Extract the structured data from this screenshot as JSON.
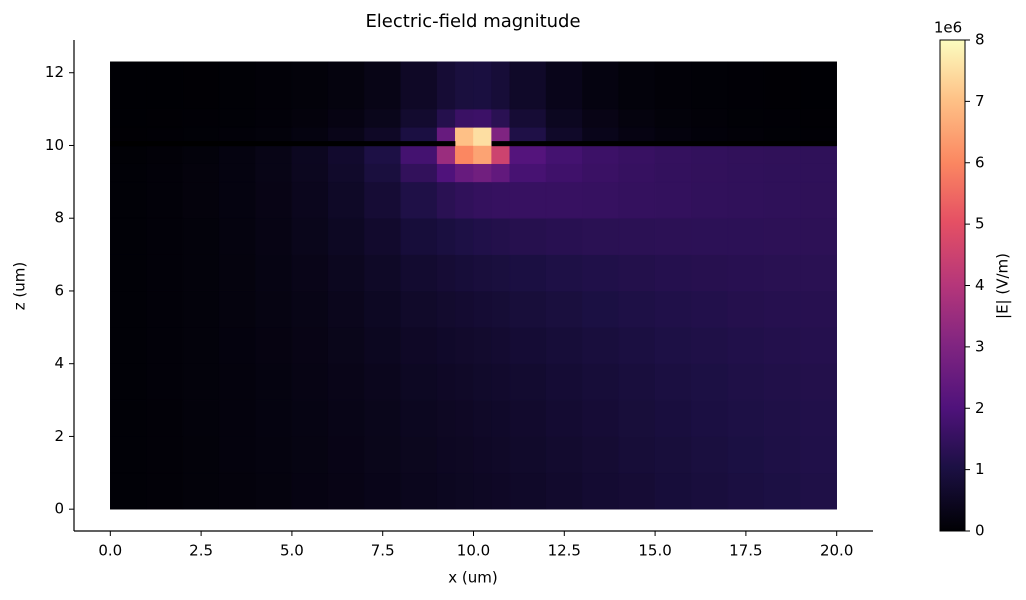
{
  "chart_data": {
    "type": "heatmap",
    "title": "Electric-field magnitude",
    "x_label": "x (um)",
    "y_label": "z (um)",
    "colorbar_label": "|E| (V/m)",
    "colorbar_offset": "1e6",
    "colormap": "magma",
    "xlim": [
      -1,
      21
    ],
    "ylim": [
      -0.6,
      12.9
    ],
    "clim": [
      0,
      8
    ],
    "xticks": [
      {
        "value": 0,
        "label": "0.0"
      },
      {
        "value": 2.5,
        "label": "2.5"
      },
      {
        "value": 5,
        "label": "5.0"
      },
      {
        "value": 7.5,
        "label": "7.5"
      },
      {
        "value": 10,
        "label": "10.0"
      },
      {
        "value": 12.5,
        "label": "12.5"
      },
      {
        "value": 15,
        "label": "15.0"
      },
      {
        "value": 17.5,
        "label": "17.5"
      },
      {
        "value": 20,
        "label": "20.0"
      }
    ],
    "yticks": [
      0,
      2,
      4,
      6,
      8,
      10,
      12
    ],
    "cticks": [
      0,
      1,
      2,
      3,
      4,
      5,
      6,
      7,
      8
    ],
    "x_edges": [
      0,
      1,
      2,
      3,
      4,
      5,
      6,
      7,
      8,
      9,
      9.5,
      10,
      10.5,
      11,
      12,
      13,
      14,
      15,
      16,
      17,
      18,
      19,
      20
    ],
    "z_edges": [
      0,
      1,
      2,
      3,
      4,
      5,
      6,
      7,
      8,
      9,
      9.5,
      10,
      10.5,
      11,
      12.3
    ],
    "values": [
      [
        0.05,
        0.07,
        0.1,
        0.13,
        0.17,
        0.22,
        0.28,
        0.34,
        0.41,
        0.46,
        0.49,
        0.52,
        0.55,
        0.6,
        0.67,
        0.74,
        0.8,
        0.87,
        0.93,
        0.99,
        1.04,
        1.1
      ],
      [
        0.05,
        0.07,
        0.1,
        0.14,
        0.18,
        0.23,
        0.29,
        0.36,
        0.43,
        0.48,
        0.51,
        0.55,
        0.58,
        0.63,
        0.7,
        0.77,
        0.84,
        0.9,
        0.96,
        1.02,
        1.07,
        1.12
      ],
      [
        0.05,
        0.07,
        0.11,
        0.14,
        0.19,
        0.24,
        0.31,
        0.38,
        0.46,
        0.51,
        0.54,
        0.58,
        0.61,
        0.67,
        0.74,
        0.81,
        0.88,
        0.94,
        1.0,
        1.05,
        1.1,
        1.14
      ],
      [
        0.05,
        0.08,
        0.11,
        0.15,
        0.2,
        0.26,
        0.33,
        0.41,
        0.5,
        0.55,
        0.59,
        0.63,
        0.66,
        0.72,
        0.79,
        0.86,
        0.93,
        0.99,
        1.04,
        1.09,
        1.13,
        1.17
      ],
      [
        0.05,
        0.08,
        0.11,
        0.16,
        0.21,
        0.28,
        0.36,
        0.45,
        0.55,
        0.61,
        0.65,
        0.69,
        0.73,
        0.79,
        0.86,
        0.93,
        0.99,
        1.05,
        1.1,
        1.14,
        1.18,
        1.21
      ],
      [
        0.05,
        0.08,
        0.12,
        0.17,
        0.23,
        0.3,
        0.39,
        0.5,
        0.62,
        0.69,
        0.73,
        0.78,
        0.82,
        0.88,
        0.95,
        1.02,
        1.07,
        1.12,
        1.16,
        1.2,
        1.23,
        1.25
      ],
      [
        0.05,
        0.08,
        0.12,
        0.17,
        0.24,
        0.33,
        0.44,
        0.57,
        0.72,
        0.8,
        0.86,
        0.91,
        0.95,
        1.0,
        1.07,
        1.12,
        1.17,
        1.21,
        1.24,
        1.27,
        1.29,
        1.3
      ],
      [
        0.05,
        0.08,
        0.12,
        0.18,
        0.26,
        0.37,
        0.5,
        0.67,
        0.87,
        0.98,
        1.06,
        1.12,
        1.17,
        1.22,
        1.27,
        1.3,
        1.32,
        1.34,
        1.35,
        1.35,
        1.36,
        1.36
      ],
      [
        0.05,
        0.08,
        0.13,
        0.19,
        0.28,
        0.4,
        0.57,
        0.8,
        1.1,
        1.3,
        1.42,
        1.5,
        1.53,
        1.55,
        1.55,
        1.53,
        1.5,
        1.47,
        1.44,
        1.42,
        1.4,
        1.39
      ],
      [
        0.05,
        0.08,
        0.13,
        0.2,
        0.3,
        0.44,
        0.64,
        0.95,
        1.45,
        2.0,
        2.5,
        2.7,
        2.4,
        1.85,
        1.7,
        1.6,
        1.53,
        1.48,
        1.45,
        1.42,
        1.4,
        1.4
      ],
      [
        0.04,
        0.07,
        0.12,
        0.19,
        0.3,
        0.45,
        0.68,
        1.05,
        1.8,
        3.5,
        6.0,
        6.5,
        4.5,
        2.1,
        1.8,
        1.65,
        1.56,
        1.5,
        1.46,
        1.43,
        1.41,
        1.4
      ],
      [
        0.02,
        0.03,
        0.05,
        0.08,
        0.12,
        0.2,
        0.32,
        0.55,
        1.0,
        2.5,
        7.0,
        7.5,
        3.0,
        1.1,
        0.6,
        0.35,
        0.22,
        0.14,
        0.09,
        0.06,
        0.04,
        0.03
      ],
      [
        0.01,
        0.02,
        0.03,
        0.05,
        0.08,
        0.13,
        0.22,
        0.38,
        0.7,
        1.2,
        1.6,
        1.65,
        1.3,
        0.8,
        0.45,
        0.28,
        0.17,
        0.1,
        0.06,
        0.04,
        0.03,
        0.02
      ],
      [
        0.01,
        0.01,
        0.02,
        0.04,
        0.06,
        0.1,
        0.17,
        0.3,
        0.55,
        0.8,
        0.95,
        0.97,
        0.85,
        0.6,
        0.35,
        0.2,
        0.12,
        0.07,
        0.05,
        0.03,
        0.02,
        0.01
      ]
    ],
    "electrodes": [
      {
        "x": [
          0,
          9.5
        ],
        "z": [
          9.98,
          10.12
        ]
      },
      {
        "x": [
          10.5,
          20
        ],
        "z": [
          9.98,
          10.12
        ]
      }
    ]
  }
}
